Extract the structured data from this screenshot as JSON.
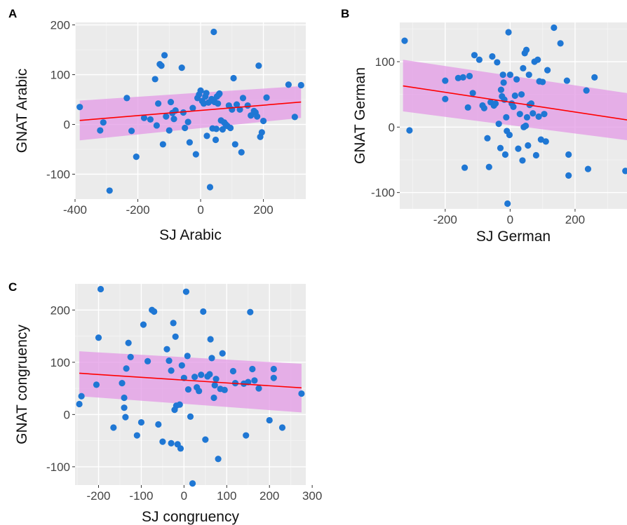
{
  "colors": {
    "panel_bg": "#EBEBEB",
    "grid_major": "#FFFFFF",
    "grid_minor": "#F5F5F5",
    "point": "#1F77D4",
    "ribbon": "#E39AE6",
    "line": "#FF0000"
  },
  "chart_data": [
    {
      "type": "scatter",
      "panel": "A",
      "xlabel": "SJ Arabic",
      "ylabel": "GNAT Arabic",
      "xlim": [
        -400,
        335
      ],
      "ylim": [
        -150,
        205
      ],
      "xticks": [
        -400,
        -200,
        0,
        200
      ],
      "yticks": [
        -100,
        0,
        100,
        200
      ],
      "xtick_labels": [
        "-400",
        "-200",
        "0",
        "200"
      ],
      "ytick_labels": [
        "-100",
        "0",
        "100",
        "200"
      ],
      "fit": {
        "x": [
          -385,
          320
        ],
        "y": [
          8,
          45
        ],
        "ribbon_low": [
          -32,
          13
        ],
        "ribbon_high": [
          48,
          77
        ]
      },
      "points": [
        [
          -385,
          35
        ],
        [
          -320,
          -12
        ],
        [
          -310,
          4
        ],
        [
          -290,
          -133
        ],
        [
          -235,
          53
        ],
        [
          -220,
          -13
        ],
        [
          -205,
          -65
        ],
        [
          -180,
          13
        ],
        [
          -160,
          10
        ],
        [
          -145,
          91
        ],
        [
          -140,
          -2
        ],
        [
          -135,
          42
        ],
        [
          -130,
          121
        ],
        [
          -125,
          118
        ],
        [
          -120,
          -40
        ],
        [
          -115,
          139
        ],
        [
          -110,
          16
        ],
        [
          -100,
          -12
        ],
        [
          -95,
          45
        ],
        [
          -90,
          23
        ],
        [
          -85,
          11
        ],
        [
          -80,
          28
        ],
        [
          -60,
          114
        ],
        [
          -55,
          24
        ],
        [
          -50,
          -7
        ],
        [
          -40,
          5
        ],
        [
          -35,
          -36
        ],
        [
          -25,
          33
        ],
        [
          -15,
          -60
        ],
        [
          -10,
          53
        ],
        [
          -5,
          60
        ],
        [
          0,
          68
        ],
        [
          5,
          47
        ],
        [
          10,
          42
        ],
        [
          15,
          56
        ],
        [
          18,
          63
        ],
        [
          20,
          -23
        ],
        [
          25,
          44
        ],
        [
          30,
          -126
        ],
        [
          35,
          51
        ],
        [
          38,
          -8
        ],
        [
          40,
          47
        ],
        [
          42,
          186
        ],
        [
          45,
          45
        ],
        [
          48,
          -31
        ],
        [
          50,
          -9
        ],
        [
          52,
          56
        ],
        [
          55,
          42
        ],
        [
          58,
          60
        ],
        [
          60,
          62
        ],
        [
          65,
          8
        ],
        [
          70,
          -10
        ],
        [
          75,
          4
        ],
        [
          80,
          0
        ],
        [
          85,
          -3
        ],
        [
          90,
          38
        ],
        [
          95,
          -7
        ],
        [
          100,
          30
        ],
        [
          105,
          93
        ],
        [
          110,
          -40
        ],
        [
          115,
          40
        ],
        [
          125,
          30
        ],
        [
          130,
          -56
        ],
        [
          135,
          53
        ],
        [
          150,
          38
        ],
        [
          160,
          18
        ],
        [
          170,
          27
        ],
        [
          175,
          24
        ],
        [
          180,
          16
        ],
        [
          185,
          118
        ],
        [
          190,
          -25
        ],
        [
          195,
          -16
        ],
        [
          200,
          7
        ],
        [
          210,
          54
        ],
        [
          280,
          80
        ],
        [
          300,
          15
        ],
        [
          320,
          79
        ]
      ]
    },
    {
      "type": "scatter",
      "panel": "B",
      "xlabel": "SJ German",
      "ylabel": "GNAT German",
      "xlim": [
        -340,
        360
      ],
      "ylim": [
        -125,
        160
      ],
      "xticks": [
        -200,
        0,
        200
      ],
      "yticks": [
        -100,
        0,
        100
      ],
      "xtick_labels": [
        "-200",
        "0",
        "200"
      ],
      "ytick_labels": [
        "-100",
        "0",
        "100"
      ],
      "fit": {
        "x": [
          -330,
          360
        ],
        "y": [
          63,
          11
        ],
        "ribbon_low": [
          24,
          -20
        ],
        "ribbon_high": [
          103,
          52
        ]
      },
      "points": [
        [
          -325,
          132
        ],
        [
          -310,
          -5
        ],
        [
          -200,
          71
        ],
        [
          -200,
          43
        ],
        [
          -160,
          75
        ],
        [
          -145,
          76
        ],
        [
          -140,
          -62
        ],
        [
          -130,
          30
        ],
        [
          -125,
          78
        ],
        [
          -115,
          52
        ],
        [
          -110,
          110
        ],
        [
          -95,
          103
        ],
        [
          -85,
          33
        ],
        [
          -80,
          29
        ],
        [
          -70,
          -17
        ],
        [
          -65,
          -61
        ],
        [
          -60,
          38
        ],
        [
          -55,
          108
        ],
        [
          -50,
          33
        ],
        [
          -45,
          36
        ],
        [
          -40,
          99
        ],
        [
          -35,
          5
        ],
        [
          -30,
          -32
        ],
        [
          -28,
          57
        ],
        [
          -25,
          47
        ],
        [
          -22,
          80
        ],
        [
          -20,
          68
        ],
        [
          -18,
          42
        ],
        [
          -15,
          -42
        ],
        [
          -12,
          15
        ],
        [
          -10,
          -6
        ],
        [
          -8,
          -117
        ],
        [
          -5,
          145
        ],
        [
          -2,
          -12
        ],
        [
          0,
          80
        ],
        [
          5,
          36
        ],
        [
          10,
          31
        ],
        [
          15,
          48
        ],
        [
          20,
          73
        ],
        [
          25,
          -33
        ],
        [
          30,
          20
        ],
        [
          35,
          50
        ],
        [
          38,
          -51
        ],
        [
          40,
          90
        ],
        [
          42,
          0
        ],
        [
          45,
          113
        ],
        [
          48,
          2
        ],
        [
          50,
          118
        ],
        [
          52,
          15
        ],
        [
          55,
          -28
        ],
        [
          58,
          80
        ],
        [
          60,
          34
        ],
        [
          65,
          36
        ],
        [
          70,
          21
        ],
        [
          75,
          100
        ],
        [
          80,
          -43
        ],
        [
          85,
          103
        ],
        [
          88,
          16
        ],
        [
          90,
          70
        ],
        [
          95,
          -19
        ],
        [
          100,
          69
        ],
        [
          105,
          20
        ],
        [
          110,
          -22
        ],
        [
          115,
          87
        ],
        [
          135,
          152
        ],
        [
          155,
          128
        ],
        [
          175,
          71
        ],
        [
          180,
          -42
        ],
        [
          180,
          -74
        ],
        [
          235,
          56
        ],
        [
          240,
          -64
        ],
        [
          260,
          76
        ],
        [
          355,
          -67
        ]
      ]
    },
    {
      "type": "scatter",
      "panel": "C",
      "xlabel": "SJ congruency",
      "ylabel": "GNAT congruency",
      "xlim": [
        -255,
        285
      ],
      "ylim": [
        -135,
        250
      ],
      "xticks": [
        -200,
        -100,
        0,
        100,
        200,
        300
      ],
      "yticks": [
        -100,
        0,
        100,
        200
      ],
      "xtick_labels": [
        "-200",
        "-100",
        "0",
        "100",
        "200",
        "300"
      ],
      "ytick_labels": [
        "-100",
        "0",
        "100",
        "200"
      ],
      "fit": {
        "x": [
          -245,
          275
        ],
        "y": [
          79,
          51
        ],
        "ribbon_low": [
          35,
          4
        ],
        "ribbon_high": [
          121,
          97
        ]
      },
      "points": [
        [
          -245,
          20
        ],
        [
          -240,
          35
        ],
        [
          -205,
          57
        ],
        [
          -200,
          147
        ],
        [
          -195,
          240
        ],
        [
          -165,
          -25
        ],
        [
          -145,
          60
        ],
        [
          -140,
          32
        ],
        [
          -140,
          13
        ],
        [
          -137,
          -5
        ],
        [
          -135,
          88
        ],
        [
          -130,
          137
        ],
        [
          -125,
          110
        ],
        [
          -110,
          -40
        ],
        [
          -100,
          -15
        ],
        [
          -95,
          172
        ],
        [
          -85,
          102
        ],
        [
          -75,
          200
        ],
        [
          -70,
          197
        ],
        [
          -60,
          -19
        ],
        [
          -50,
          -52
        ],
        [
          -40,
          125
        ],
        [
          -35,
          103
        ],
        [
          -30,
          84
        ],
        [
          -30,
          -55
        ],
        [
          -25,
          175
        ],
        [
          -22,
          9
        ],
        [
          -20,
          149
        ],
        [
          -18,
          17
        ],
        [
          -15,
          -57
        ],
        [
          -10,
          19
        ],
        [
          -8,
          -65
        ],
        [
          -5,
          94
        ],
        [
          0,
          70
        ],
        [
          5,
          235
        ],
        [
          8,
          112
        ],
        [
          10,
          48
        ],
        [
          15,
          -4
        ],
        [
          20,
          -132
        ],
        [
          25,
          72
        ],
        [
          30,
          52
        ],
        [
          35,
          45
        ],
        [
          40,
          76
        ],
        [
          45,
          197
        ],
        [
          50,
          -48
        ],
        [
          55,
          73
        ],
        [
          60,
          77
        ],
        [
          62,
          144
        ],
        [
          65,
          108
        ],
        [
          70,
          32
        ],
        [
          72,
          56
        ],
        [
          75,
          68
        ],
        [
          80,
          -85
        ],
        [
          85,
          49
        ],
        [
          90,
          117
        ],
        [
          95,
          47
        ],
        [
          115,
          83
        ],
        [
          120,
          60
        ],
        [
          140,
          59
        ],
        [
          145,
          -40
        ],
        [
          150,
          62
        ],
        [
          155,
          196
        ],
        [
          160,
          87
        ],
        [
          165,
          65
        ],
        [
          175,
          50
        ],
        [
          200,
          -11
        ],
        [
          210,
          70
        ],
        [
          210,
          87
        ],
        [
          230,
          -25
        ],
        [
          275,
          40
        ]
      ]
    }
  ]
}
